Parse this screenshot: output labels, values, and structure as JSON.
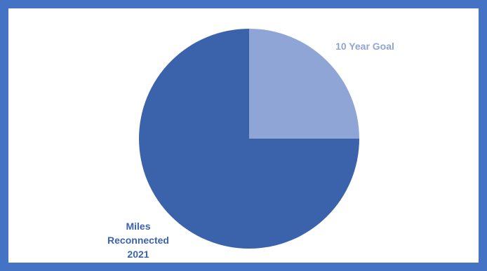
{
  "chart_data": {
    "type": "pie",
    "title": "",
    "slices": [
      {
        "label": "10 Year Goal",
        "value": 25,
        "color": "#8FA5D6"
      },
      {
        "label": "Miles Reconnected 2021",
        "value": 75,
        "color": "#3B63AC"
      }
    ],
    "legend": "none",
    "data_labels": "category-name"
  },
  "colors": {
    "frame_border": "#4472C4",
    "background": "#FFFFFF"
  }
}
